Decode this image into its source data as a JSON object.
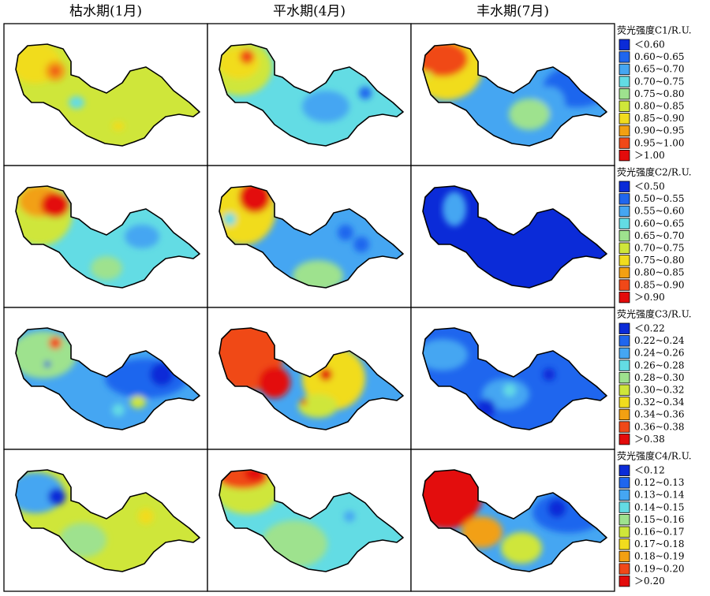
{
  "column_titles": [
    "枯水期(1月)",
    "平水期(4月)",
    "丰水期(7月)"
  ],
  "legends": [
    {
      "title": "荧光强度C1/R.U.",
      "entries": [
        {
          "label": "＜0.60",
          "color": "#0b2bd8"
        },
        {
          "label": "0.60~0.65",
          "color": "#1f66ee"
        },
        {
          "label": "0.65~0.70",
          "color": "#45a6f2"
        },
        {
          "label": "0.70~0.75",
          "color": "#63dce4"
        },
        {
          "label": "0.75~0.80",
          "color": "#9ee28e"
        },
        {
          "label": "0.80~0.85",
          "color": "#cfe63a"
        },
        {
          "label": "0.85~0.90",
          "color": "#f1dc1e"
        },
        {
          "label": "0.90~0.95",
          "color": "#f2a012"
        },
        {
          "label": "0.95~1.00",
          "color": "#f04818"
        },
        {
          "label": "＞1.00",
          "color": "#e30b0b"
        }
      ]
    },
    {
      "title": "荧光强度C2/R.U.",
      "entries": [
        {
          "label": "＜0.50",
          "color": "#0b2bd8"
        },
        {
          "label": "0.50~0.55",
          "color": "#1f66ee"
        },
        {
          "label": "0.55~0.60",
          "color": "#45a6f2"
        },
        {
          "label": "0.60~0.65",
          "color": "#63dce4"
        },
        {
          "label": "0.65~0.70",
          "color": "#9ee28e"
        },
        {
          "label": "0.70~0.75",
          "color": "#cfe63a"
        },
        {
          "label": "0.75~0.80",
          "color": "#f1dc1e"
        },
        {
          "label": "0.80~0.85",
          "color": "#f2a012"
        },
        {
          "label": "0.85~0.90",
          "color": "#f04818"
        },
        {
          "label": "＞0.90",
          "color": "#e30b0b"
        }
      ]
    },
    {
      "title": "荧光强度C3/R.U.",
      "entries": [
        {
          "label": "＜0.22",
          "color": "#0b2bd8"
        },
        {
          "label": "0.22~0.24",
          "color": "#1f66ee"
        },
        {
          "label": "0.24~0.26",
          "color": "#45a6f2"
        },
        {
          "label": "0.26~0.28",
          "color": "#63dce4"
        },
        {
          "label": "0.28~0.30",
          "color": "#9ee28e"
        },
        {
          "label": "0.30~0.32",
          "color": "#cfe63a"
        },
        {
          "label": "0.32~0.34",
          "color": "#f1dc1e"
        },
        {
          "label": "0.34~0.36",
          "color": "#f2a012"
        },
        {
          "label": "0.36~0.38",
          "color": "#f04818"
        },
        {
          "label": "＞0.38",
          "color": "#e30b0b"
        }
      ]
    },
    {
      "title": "荧光强度C4/R.U.",
      "entries": [
        {
          "label": "＜0.12",
          "color": "#0b2bd8"
        },
        {
          "label": "0.12~0.13",
          "color": "#1f66ee"
        },
        {
          "label": "0.13~0.14",
          "color": "#45a6f2"
        },
        {
          "label": "0.14~0.15",
          "color": "#63dce4"
        },
        {
          "label": "0.15~0.16",
          "color": "#9ee28e"
        },
        {
          "label": "0.16~0.17",
          "color": "#cfe63a"
        },
        {
          "label": "0.17~0.18",
          "color": "#f1dc1e"
        },
        {
          "label": "0.18~0.19",
          "color": "#f2a012"
        },
        {
          "label": "0.19~0.20",
          "color": "#f04818"
        },
        {
          "label": "＞0.20",
          "color": "#e30b0b"
        }
      ]
    }
  ]
}
